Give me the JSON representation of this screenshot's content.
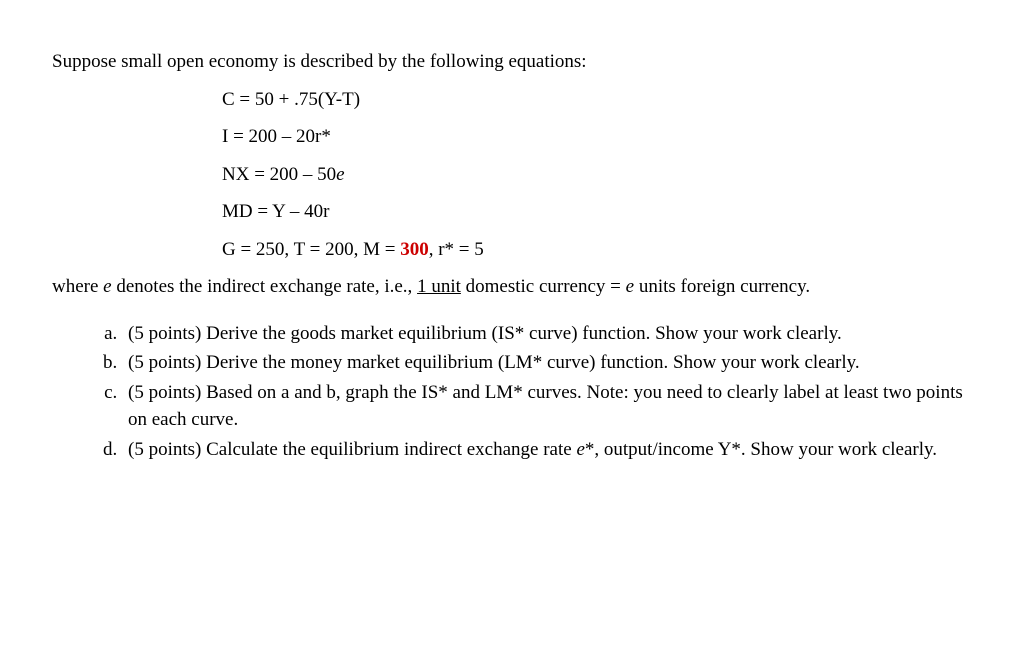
{
  "intro": "Suppose small open economy is described by the following equations:",
  "equations": {
    "c": "C = 50 + .75(Y-T)",
    "i": "I = 200 – 20r*",
    "nx": "NX = 200 – 50",
    "nx_e": "e",
    "md": "MD = Y – 40r",
    "g_prefix": "G = 250, T = 200, M = ",
    "g_red": "300",
    "g_suffix": ", r* = 5"
  },
  "where": {
    "prefix": "where ",
    "e": "e",
    "mid1": " denotes the indirect exchange rate, i.e., ",
    "unit": "1 unit",
    "mid2": " domestic currency = ",
    "e2": "e",
    "suffix": " units foreign currency."
  },
  "questions": {
    "a": "(5 points) Derive the goods market equilibrium (IS* curve) function. Show your work clearly.",
    "b": "(5 points) Derive the money market equilibrium (LM* curve) function. Show your work clearly.",
    "c": "(5 points) Based on a and b, graph the IS* and LM* curves. Note: you need to clearly label at least two points on each curve.",
    "d_prefix": "(5 points) Calculate the equilibrium indirect exchange rate ",
    "d_e": "e",
    "d_suffix": "*, output/income Y*. Show your work clearly."
  }
}
